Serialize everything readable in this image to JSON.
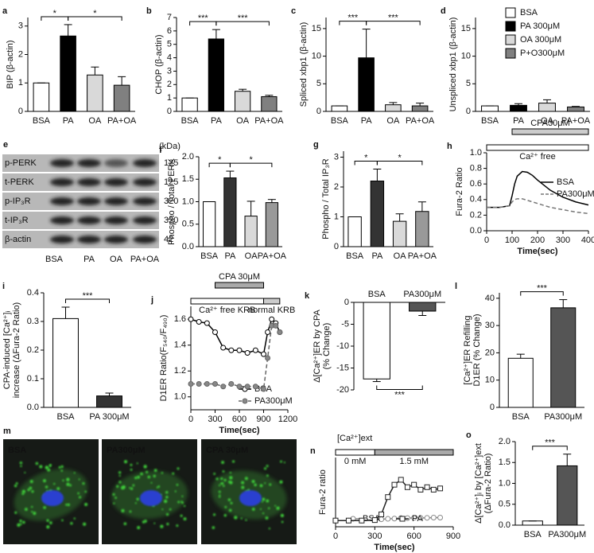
{
  "chart_data": [
    {
      "type": "bar",
      "panel": "a",
      "ylabel": [
        "BIP (β-actin)"
      ],
      "categories": [
        "BSA",
        "PA",
        "OA",
        "PA+OA"
      ],
      "values": [
        1,
        2.65,
        1.28,
        0.92
      ],
      "errors": [
        0,
        0.4,
        0.28,
        0.3
      ],
      "colors": [
        "#ffffff",
        "#000000",
        "#d9d9d9",
        "#808080"
      ],
      "ylim": [
        0,
        3.3
      ],
      "yticks": [
        0,
        1,
        2,
        3
      ],
      "significance": [
        {
          "label": "*",
          "between": [
            "BSA",
            "PA"
          ]
        },
        {
          "label": "*",
          "between": [
            "PA",
            "PA+OA"
          ]
        }
      ]
    },
    {
      "type": "bar",
      "panel": "b",
      "ylabel": [
        "CHOP (β-actin)"
      ],
      "categories": [
        "BSA",
        "PA",
        "OA",
        "PA+OA"
      ],
      "values": [
        1,
        5.4,
        1.5,
        1.1
      ],
      "errors": [
        0,
        0.7,
        0.15,
        0.1
      ],
      "colors": [
        "#ffffff",
        "#000000",
        "#d9d9d9",
        "#808080"
      ],
      "ylim": [
        0,
        7
      ],
      "yticks": [
        0,
        1,
        2,
        3,
        4,
        5,
        6,
        7
      ],
      "significance": [
        {
          "label": "***",
          "between": [
            "BSA",
            "PA"
          ]
        },
        {
          "label": "***",
          "between": [
            "PA",
            "PA+OA"
          ]
        }
      ]
    },
    {
      "type": "bar",
      "panel": "c",
      "ylabel": [
        "Spliced xbp1 (β-actin)"
      ],
      "categories": [
        "BSA",
        "PA",
        "OA",
        "PA+OA"
      ],
      "values": [
        1,
        9.7,
        1.2,
        1.0
      ],
      "errors": [
        0,
        5.2,
        0.4,
        0.5
      ],
      "colors": [
        "#ffffff",
        "#000000",
        "#d9d9d9",
        "#808080"
      ],
      "ylim": [
        0,
        17
      ],
      "yticks": [
        0,
        5,
        10,
        15
      ],
      "significance": [
        {
          "label": "***",
          "between": [
            "BSA",
            "PA"
          ]
        },
        {
          "label": "***",
          "between": [
            "PA",
            "PA+OA"
          ]
        }
      ]
    },
    {
      "type": "bar",
      "panel": "d",
      "ylabel": [
        "Unspliced xbp1 (β-actin)"
      ],
      "categories": [
        "BSA",
        "PA",
        "OA",
        "PA+OA"
      ],
      "values": [
        1,
        1.1,
        1.5,
        0.8
      ],
      "errors": [
        0,
        0.3,
        0.6,
        0.1
      ],
      "colors": [
        "#ffffff",
        "#000000",
        "#d9d9d9",
        "#808080"
      ],
      "ylim": [
        0,
        17
      ],
      "yticks": [
        0,
        5,
        10,
        15
      ],
      "legend_labels": [
        "BSA",
        "PA 300μM",
        "OA 300μM",
        "P+O300μM"
      ]
    },
    {
      "type": "bar",
      "panel": "f",
      "ylabel": [
        "Phospho / Total PERK"
      ],
      "categories": [
        "BSA",
        "PA",
        "OA",
        "PA+OA"
      ],
      "values": [
        1,
        1.53,
        0.68,
        0.98
      ],
      "errors": [
        0,
        0.15,
        0.33,
        0.07
      ],
      "colors": [
        "#ffffff",
        "#333333",
        "#d9d9d9",
        "#999999"
      ],
      "ylim": [
        0,
        2
      ],
      "yticks": [
        {
          "value": 0,
          "label": "0.0"
        },
        {
          "value": 0.5,
          "label": "0.5"
        },
        {
          "value": 1,
          "label": "1.0"
        },
        {
          "value": 1.5,
          "label": "1.5"
        },
        {
          "value": 2,
          "label": "2.0"
        }
      ],
      "significance": [
        {
          "label": "*",
          "between": [
            "BSA",
            "PA"
          ]
        },
        {
          "label": "*",
          "between": [
            "PA",
            "PA+OA"
          ]
        }
      ]
    },
    {
      "type": "bar",
      "panel": "g",
      "ylabel": [
        "Phospho / Total IP₃R"
      ],
      "categories": [
        "BSA",
        "PA",
        "OA",
        "PA+OA"
      ],
      "values": [
        1,
        2.2,
        0.85,
        1.18
      ],
      "errors": [
        0,
        0.4,
        0.25,
        0.32
      ],
      "colors": [
        "#ffffff",
        "#333333",
        "#d9d9d9",
        "#999999"
      ],
      "ylim": [
        0,
        3.2
      ],
      "yticks": [
        0,
        1,
        2,
        3
      ],
      "significance": [
        {
          "label": "*",
          "between": [
            "BSA",
            "PA"
          ]
        },
        {
          "label": "*",
          "between": [
            "PA",
            "PA+OA"
          ]
        }
      ]
    },
    {
      "type": "line",
      "panel": "h",
      "ylabel": [
        "Fura-2 Ratio"
      ],
      "xlabel": "Time(sec)",
      "x": [
        0,
        50,
        90,
        100,
        110,
        120,
        140,
        160,
        180,
        200,
        250,
        300,
        350,
        400
      ],
      "series": [
        {
          "name": "BSA",
          "color": "#000000",
          "line_style": "solid",
          "values": [
            0.3,
            0.3,
            0.32,
            0.45,
            0.6,
            0.7,
            0.76,
            0.75,
            0.71,
            0.65,
            0.52,
            0.43,
            0.37,
            0.33
          ]
        },
        {
          "name": "PA300μM",
          "color": "#777777",
          "line_style": "dashed",
          "values": [
            0.3,
            0.3,
            0.32,
            0.37,
            0.4,
            0.41,
            0.41,
            0.39,
            0.37,
            0.35,
            0.3,
            0.27,
            0.24,
            0.22
          ]
        }
      ],
      "xlim": [
        0,
        400
      ],
      "xticks": [
        0,
        100,
        200,
        300,
        400
      ],
      "ylim": [
        0,
        1
      ],
      "yticks": [
        {
          "value": 0,
          "label": "0.0"
        },
        {
          "value": 0.2,
          "label": "0.2"
        },
        {
          "value": 0.4,
          "label": "0.4"
        },
        {
          "value": 0.6,
          "label": "0.6"
        },
        {
          "value": 0.8,
          "label": "0.8"
        },
        {
          "value": 1,
          "label": "1.0"
        }
      ],
      "legend": "right",
      "annotations": [
        {
          "text": "Ca²⁺ free",
          "span": [
            0,
            400
          ],
          "color": "#ffffff"
        },
        {
          "text": "CPA30μM",
          "span": [
            100,
            400
          ],
          "color": "#cccccc"
        }
      ]
    },
    {
      "type": "bar",
      "panel": "i",
      "ylabel": [
        "CPA-induced [Ca²⁺]ᵢ",
        "increase (ΔFura-2 Ratio)"
      ],
      "categories": [
        "BSA",
        "PA 300μM"
      ],
      "values": [
        0.31,
        0.04
      ],
      "errors": [
        0.04,
        0.01
      ],
      "colors": [
        "#ffffff",
        "#333333"
      ],
      "ylim": [
        0,
        0.4
      ],
      "yticks": [
        {
          "value": 0,
          "label": "0.0"
        },
        {
          "value": 0.1,
          "label": "0.1"
        },
        {
          "value": 0.2,
          "label": "0.2"
        },
        {
          "value": 0.3,
          "label": "0.3"
        },
        {
          "value": 0.4,
          "label": "0.4"
        }
      ],
      "significance": [
        {
          "label": "***",
          "between": [
            "BSA",
            "PA 300μM"
          ]
        }
      ]
    },
    {
      "type": "line",
      "panel": "j",
      "ylabel": [
        "D1ER Ratio(F₅₄₀/F₄₉₀)"
      ],
      "xlabel": "Time(sec)",
      "x": [
        0,
        100,
        200,
        300,
        400,
        500,
        600,
        700,
        800,
        900,
        950,
        1000,
        1050,
        1100
      ],
      "series": [
        {
          "name": "BSA",
          "color": "#000000",
          "line_style": "solid",
          "marker": "circle",
          "marker_fill": "#ffffff",
          "values": [
            1.6,
            1.58,
            1.57,
            1.5,
            1.38,
            1.36,
            1.36,
            1.34,
            1.36,
            1.33,
            1.5,
            1.6,
            1.57,
            1.5
          ]
        },
        {
          "name": "PA300μM",
          "color": "#666666",
          "line_style": "dashed",
          "marker": "circle",
          "marker_fill": "#888888",
          "values": [
            1.1,
            1.1,
            1.1,
            1.1,
            1.08,
            1.1,
            1.08,
            1.08,
            1.08,
            1.06,
            1.3,
            1.55,
            1.55,
            1.5
          ]
        }
      ],
      "xlim": [
        0,
        1200
      ],
      "xticks": [
        0,
        300,
        600,
        900,
        1200
      ],
      "ylim": [
        0.9,
        1.7
      ],
      "yticks": [
        {
          "value": 1,
          "label": "1.0"
        },
        {
          "value": 1.2,
          "label": "1.2"
        },
        {
          "value": 1.4,
          "label": "1.4"
        },
        {
          "value": 1.6,
          "label": "1.6"
        }
      ],
      "legend": "lower right",
      "annotations": [
        {
          "text": "Ca²⁺ free KRB",
          "span": [
            0,
            900
          ],
          "color": "#ffffff"
        },
        {
          "text": "normal KRB",
          "span": [
            900,
            1100
          ],
          "color": "#cccccc"
        },
        {
          "text": "CPA 30μM",
          "span": [
            300,
            900
          ],
          "color": "#aaaaaa"
        }
      ]
    },
    {
      "type": "bar",
      "panel": "k",
      "ylabel": [
        "Δ[Ca²⁺]ER by CPA",
        "(% Change)"
      ],
      "categories": [
        "BSA",
        "PA300μM"
      ],
      "values": [
        -17.5,
        -2
      ],
      "errors": [
        0.6,
        1
      ],
      "colors": [
        "#ffffff",
        "#555555"
      ],
      "ylim": [
        -20,
        0
      ],
      "yticks": [
        0,
        -5,
        -10,
        -15,
        -20
      ],
      "x_labels_top": true,
      "significance": [
        {
          "label": "***",
          "between": [
            "BSA",
            "PA300μM"
          ]
        }
      ]
    },
    {
      "type": "bar",
      "panel": "l",
      "ylabel": [
        "[Ca²⁺]ER Refilling",
        "D1ER (% Change)"
      ],
      "categories": [
        "BSA",
        "PA300μM"
      ],
      "values": [
        18,
        36.5
      ],
      "errors": [
        1.5,
        3
      ],
      "colors": [
        "#ffffff",
        "#555555"
      ],
      "ylim": [
        0,
        42
      ],
      "yticks": [
        0,
        10,
        20,
        30,
        40
      ],
      "significance": [
        {
          "label": "***",
          "between": [
            "BSA",
            "PA300μM"
          ]
        }
      ]
    },
    {
      "type": "line",
      "panel": "n",
      "title": "[Ca²⁺]ext",
      "ylabel": [
        "Fura-2 ratio"
      ],
      "xlabel": "Time(sec)",
      "x": [
        0,
        100,
        200,
        300,
        350,
        400,
        450,
        500,
        550,
        600,
        650,
        700,
        750,
        800
      ],
      "series": [
        {
          "name": "BSA",
          "color": "#888888",
          "line_style": "solid",
          "marker": "circle",
          "marker_fill": "#ffffff",
          "values": [
            0.25,
            0.25,
            0.25,
            0.27,
            0.3,
            0.32,
            0.33,
            0.35,
            0.35,
            0.36,
            0.36,
            0.36,
            0.37,
            0.37
          ]
        },
        {
          "name": "PA",
          "color": "#222222",
          "line_style": "solid",
          "marker": "square",
          "marker_fill": "#ffffff",
          "values": [
            0.25,
            0.25,
            0.25,
            0.27,
            0.5,
            1.2,
            1.7,
            1.9,
            1.6,
            1.7,
            1.5,
            1.6,
            1.5,
            1.55
          ]
        }
      ],
      "xlim": [
        0,
        900
      ],
      "xticks": [
        0,
        300,
        600,
        900
      ],
      "ylim": [
        0,
        2.8
      ],
      "legend": "lower center",
      "annotations": [
        {
          "text": "0 mM",
          "span": [
            0,
            300
          ],
          "color": "#ffffff"
        },
        {
          "text": "1.5 mM",
          "span": [
            300,
            900
          ],
          "color": "#aaaaaa"
        }
      ]
    },
    {
      "type": "bar",
      "panel": "o",
      "ylabel": [
        "Δ[Ca²⁺]ᵢ by [Ca²⁺]ext",
        "(ΔFura-2 Ratio)"
      ],
      "categories": [
        "BSA",
        "PA300μM"
      ],
      "values": [
        0.1,
        1.42
      ],
      "errors": [
        0,
        0.28
      ],
      "colors": [
        "#ffffff",
        "#555555"
      ],
      "ylim": [
        0,
        2
      ],
      "yticks": [
        {
          "value": 0,
          "label": "0.0"
        },
        {
          "value": 0.5,
          "label": "0.5"
        },
        {
          "value": 1,
          "label": "1.0"
        },
        {
          "value": 1.5,
          "label": "1.5"
        },
        {
          "value": 2,
          "label": "2.0"
        }
      ],
      "significance": [
        {
          "label": "***",
          "between": [
            "BSA",
            "PA300μM"
          ]
        }
      ]
    }
  ],
  "blot": {
    "panel": "e",
    "unit": "(kDa)",
    "rows": [
      {
        "name": "p-PERK",
        "kda": 125
      },
      {
        "name": "t-PERK",
        "kda": 125
      },
      {
        "name": "p-IP₃R",
        "kda": 320
      },
      {
        "name": "t-IP₃R",
        "kda": 320
      },
      {
        "name": "β-actin",
        "kda": 42
      }
    ],
    "lanes": [
      "BSA",
      "PA",
      "OA",
      "PA+OA"
    ]
  },
  "micrographs": {
    "panel": "m",
    "labels": [
      "BSA",
      "PA300μM",
      "CPA 30μM"
    ]
  }
}
